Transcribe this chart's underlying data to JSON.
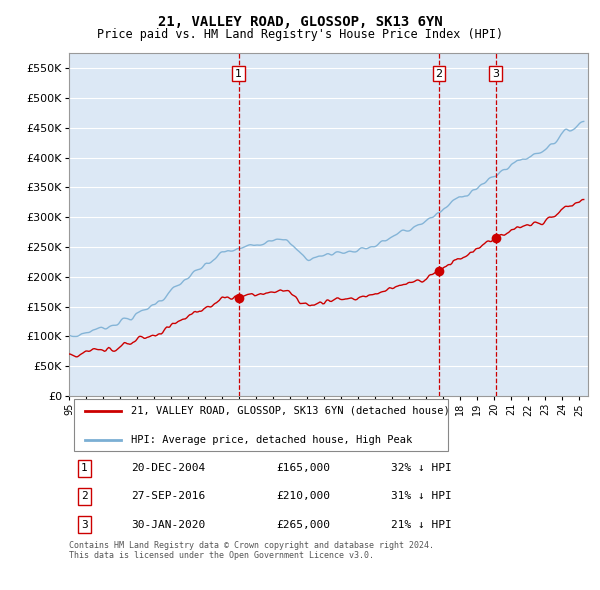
{
  "title": "21, VALLEY ROAD, GLOSSOP, SK13 6YN",
  "subtitle": "Price paid vs. HM Land Registry's House Price Index (HPI)",
  "ylim": [
    0,
    575000
  ],
  "yticks": [
    0,
    50000,
    100000,
    150000,
    200000,
    250000,
    300000,
    350000,
    400000,
    450000,
    500000,
    550000
  ],
  "ytick_labels": [
    "£0",
    "£50K",
    "£100K",
    "£150K",
    "£200K",
    "£250K",
    "£300K",
    "£350K",
    "£400K",
    "£450K",
    "£500K",
    "£550K"
  ],
  "xlim_start": 1995.0,
  "xlim_end": 2025.5,
  "xtick_years": [
    1995,
    1996,
    1997,
    1998,
    1999,
    2000,
    2001,
    2002,
    2003,
    2004,
    2005,
    2006,
    2007,
    2008,
    2009,
    2010,
    2011,
    2012,
    2013,
    2014,
    2015,
    2016,
    2017,
    2018,
    2019,
    2020,
    2021,
    2022,
    2023,
    2024,
    2025
  ],
  "hpi_color": "#7bafd4",
  "price_color": "#cc0000",
  "vline_color": "#cc0000",
  "sales": [
    {
      "date_num": 2004.97,
      "price": 165000,
      "label": "1"
    },
    {
      "date_num": 2016.75,
      "price": 210000,
      "label": "2"
    },
    {
      "date_num": 2020.08,
      "price": 265000,
      "label": "3"
    }
  ],
  "table_rows": [
    {
      "num": "1",
      "date": "20-DEC-2004",
      "price": "£165,000",
      "hpi_rel": "32% ↓ HPI"
    },
    {
      "num": "2",
      "date": "27-SEP-2016",
      "price": "£210,000",
      "hpi_rel": "31% ↓ HPI"
    },
    {
      "num": "3",
      "date": "30-JAN-2020",
      "price": "£265,000",
      "hpi_rel": "21% ↓ HPI"
    }
  ],
  "legend_line1": "21, VALLEY ROAD, GLOSSOP, SK13 6YN (detached house)",
  "legend_line2": "HPI: Average price, detached house, High Peak",
  "footnote": "Contains HM Land Registry data © Crown copyright and database right 2024.\nThis data is licensed under the Open Government Licence v3.0.",
  "bg_color": "#ffffff",
  "plot_bg_color": "#dce8f5",
  "grid_color": "#ffffff"
}
